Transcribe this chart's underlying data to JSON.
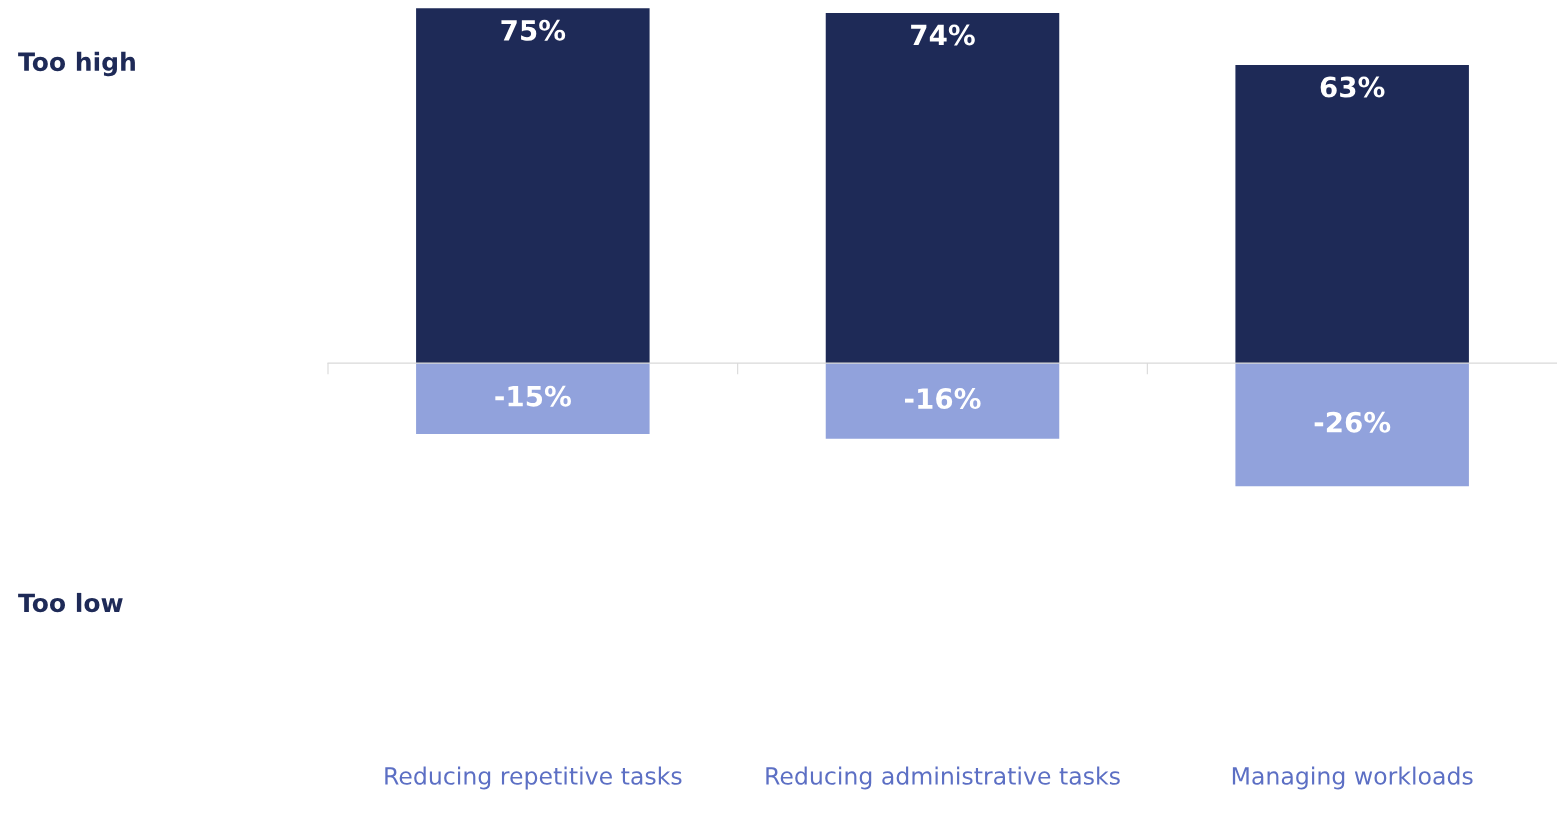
{
  "chart_data": {
    "type": "bar",
    "stacked": true,
    "categories": [
      "Reducing repetitive tasks",
      "Reducing administrative tasks",
      "Managing workloads"
    ],
    "series": [
      {
        "color": "#1e2a57",
        "values": [
          75,
          74,
          63
        ],
        "value_labels": [
          "75%",
          "74%",
          "63%"
        ]
      },
      {
        "color": "#91a2dc",
        "values": [
          -15,
          -16,
          -26
        ],
        "value_labels": [
          "-15%",
          "-16%",
          "-26%"
        ]
      }
    ],
    "annotations": [
      "Too high",
      "Too low"
    ]
  }
}
